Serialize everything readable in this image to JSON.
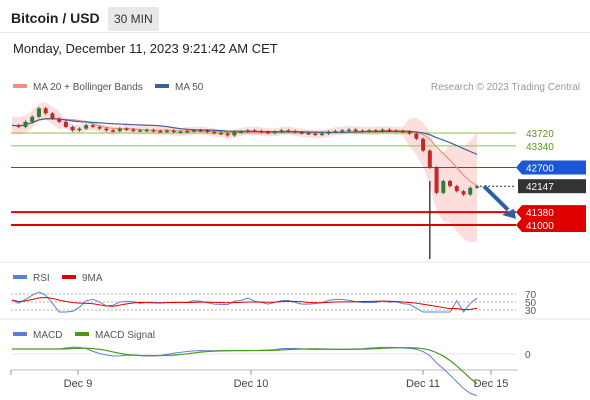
{
  "header": {
    "title": "Bitcoin / USD",
    "interval": "30 MIN",
    "datetime": "Monday, December 11, 2023 9:21:42 AM CET"
  },
  "legend": {
    "ma20": {
      "label": "MA 20 + Bollinger Bands",
      "color": "#f28b82"
    },
    "ma50": {
      "label": "MA 50",
      "color": "#3a5f9a"
    },
    "credit": "Research © 2023 Trading Central"
  },
  "rsi_legend": {
    "rsi": {
      "label": "RSI",
      "color": "#5b7fd8"
    },
    "ma9": {
      "label": "9MA",
      "color": "#e00000"
    }
  },
  "macd_legend": {
    "macd": {
      "label": "MACD",
      "color": "#5b7fd8"
    },
    "signal": {
      "label": "MACD Signal",
      "color": "#4a9a1a"
    }
  },
  "chart_data": {
    "type": "candlestick",
    "ylim": [
      40800,
      44600
    ],
    "x_labels": [
      "Dec 9",
      "Dec 10",
      "Dec 11",
      "Dec 15"
    ],
    "levels": [
      {
        "value": 43720,
        "label": "43720",
        "style": "resistance",
        "color": "#8cc63f"
      },
      {
        "value": 43340,
        "label": "43340",
        "style": "resistance",
        "color": "#8cc63f"
      },
      {
        "value": 42700,
        "label": "42700",
        "style": "pivot",
        "color": "#1a56d6"
      },
      {
        "value": 42147,
        "label": "42147",
        "style": "last",
        "color": "#333333"
      },
      {
        "value": 41380,
        "label": "41380",
        "style": "support",
        "color": "#e00000"
      },
      {
        "value": 41000,
        "label": "41000",
        "style": "support",
        "color": "#e00000"
      }
    ],
    "price_path": [
      43950,
      43900,
      44050,
      44200,
      44450,
      44300,
      44150,
      44050,
      43900,
      43800,
      43850,
      43950,
      43900,
      43850,
      43800,
      43780,
      43850,
      43820,
      43790,
      43800,
      43810,
      43780,
      43770,
      43790,
      43750,
      43760,
      43780,
      43800,
      43790,
      43750,
      43720,
      43700,
      43650,
      43750,
      43760,
      43800,
      43780,
      43750,
      43720,
      43760,
      43800,
      43780,
      43740,
      43720,
      43700,
      43680,
      43700,
      43760,
      43780,
      43800,
      43820,
      43790,
      43780,
      43800,
      43770,
      43820,
      43790,
      43780,
      43760,
      43700,
      43550,
      43200,
      42700,
      41950,
      42300,
      42150,
      42000,
      41900,
      42100,
      42147
    ],
    "rsi_levels": [
      {
        "value": 70,
        "label": "70"
      },
      {
        "value": 50,
        "label": "50"
      },
      {
        "value": 30,
        "label": "30"
      }
    ],
    "macd_zero": {
      "value": 0,
      "label": "0"
    }
  }
}
